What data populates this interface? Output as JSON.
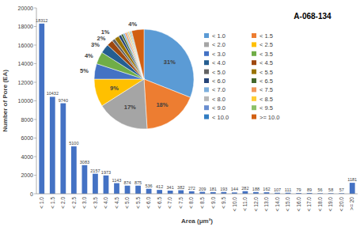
{
  "chart_data": [
    {
      "type": "bar",
      "title": "A-068-134",
      "x_label": "Area (μm²)",
      "y_label": "Number of Pore (EA)",
      "categories": [
        "< 1.0",
        "< 1.5",
        "< 2.0",
        "< 2.5",
        "< 3.0",
        "< 3.5",
        "< 4.0",
        "< 4.5",
        "< 5.0",
        "< 5.5",
        "< 6.0",
        "< 6.5",
        "< 7.0",
        "< 7.5",
        "< 8.0",
        "< 8.5",
        "< 9.0",
        "< 9.5",
        "< 10.0",
        "< 11.0",
        "< 12.0",
        "< 13.0",
        "< 14.0",
        "< 15.0",
        "< 16.0",
        "< 17.0",
        "< 18.0",
        "< 19.0",
        "< 20.0",
        ">= 20"
      ],
      "values": [
        18312,
        10432,
        9740,
        5100,
        3083,
        2157,
        1973,
        1143,
        874,
        875,
        536,
        412,
        341,
        382,
        272,
        209,
        181,
        193,
        144,
        282,
        188,
        162,
        107,
        111,
        79,
        89,
        56,
        58,
        57,
        1181
      ],
      "color": "#4472c4",
      "ylim": [
        0,
        20000
      ],
      "yticks": [
        0,
        2000,
        4000,
        6000,
        8000,
        10000,
        12000,
        14000,
        16000,
        18000,
        20000
      ],
      "grid": false,
      "data_labels": true
    },
    {
      "type": "pie",
      "categories": [
        "< 1.0",
        "< 1.5",
        "< 2.0",
        "< 2.5",
        "< 3.0",
        "< 3.5",
        "< 4.0",
        "< 4.5",
        "< 5.0",
        "< 5.5",
        "< 6.0",
        "< 6.5",
        "< 7.0",
        "< 7.5",
        "< 8.0",
        "< 8.5",
        "< 9.0",
        "< 9.5",
        "< 10.0",
        ">= 10.0"
      ],
      "values": [
        31,
        18,
        17,
        9,
        5,
        4,
        3,
        2,
        1,
        1.5,
        0.9,
        0.7,
        0.6,
        0.6,
        0.5,
        0.4,
        0.3,
        0.3,
        0.2,
        4
      ],
      "value_labels": [
        "31%",
        "18%",
        "17%",
        "9%",
        "5%",
        "4%",
        "3%",
        "2%",
        "1%",
        null,
        null,
        null,
        null,
        null,
        null,
        null,
        null,
        null,
        null,
        "4%"
      ],
      "colors": [
        "#5b9bd5",
        "#ed7d31",
        "#a5a5a5",
        "#ffc000",
        "#4472c4",
        "#70ad47",
        "#255e91",
        "#9e480e",
        "#636363",
        "#997300",
        "#264478",
        "#43682b",
        "#7cafdd",
        "#f1975a",
        "#b7b7b7",
        "#ffcd33",
        "#698ed0",
        "#8cc168",
        "#327dc2",
        "#d26012"
      ],
      "legend": "right",
      "data_labels": true
    }
  ]
}
